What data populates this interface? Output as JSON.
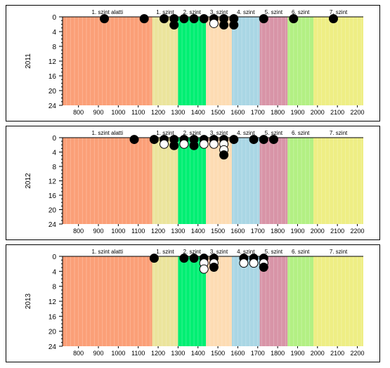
{
  "chart_data": [
    {
      "type": "scatter",
      "ylabel": "2011",
      "xlim": [
        720,
        2230
      ],
      "ylim": [
        24,
        0
      ],
      "x_ticks": [
        "800",
        "900",
        "1000",
        "1100",
        "1200",
        "1300",
        "1400",
        "1500",
        "1600",
        "1700",
        "1800",
        "1900",
        "2000",
        "2100",
        "2200"
      ],
      "y_ticks": [
        "0",
        "4",
        "8",
        "12",
        "16",
        "20",
        "24"
      ],
      "points": [
        {
          "x": 930,
          "y": 0.5,
          "fill": "black"
        },
        {
          "x": 1130,
          "y": 0.5,
          "fill": "black"
        },
        {
          "x": 1230,
          "y": 0.5,
          "fill": "black"
        },
        {
          "x": 1280,
          "y": 0.5,
          "fill": "black"
        },
        {
          "x": 1280,
          "y": 2.2,
          "fill": "black"
        },
        {
          "x": 1330,
          "y": 0.5,
          "fill": "black"
        },
        {
          "x": 1380,
          "y": 0.5,
          "fill": "black"
        },
        {
          "x": 1430,
          "y": 0.5,
          "fill": "black"
        },
        {
          "x": 1480,
          "y": 0.5,
          "fill": "black"
        },
        {
          "x": 1480,
          "y": 1.8,
          "fill": "white"
        },
        {
          "x": 1530,
          "y": 0.5,
          "fill": "black"
        },
        {
          "x": 1530,
          "y": 2.2,
          "fill": "black"
        },
        {
          "x": 1580,
          "y": 0.5,
          "fill": "black"
        },
        {
          "x": 1580,
          "y": 2.2,
          "fill": "black"
        },
        {
          "x": 1730,
          "y": 0.5,
          "fill": "black"
        },
        {
          "x": 1880,
          "y": 0.5,
          "fill": "black"
        },
        {
          "x": 2080,
          "y": 0.5,
          "fill": "black"
        }
      ]
    },
    {
      "type": "scatter",
      "ylabel": "2012",
      "xlim": [
        720,
        2230
      ],
      "ylim": [
        24,
        0
      ],
      "x_ticks": [
        "800",
        "900",
        "1000",
        "1100",
        "1200",
        "1300",
        "1400",
        "1500",
        "1600",
        "1700",
        "1800",
        "1900",
        "2000",
        "2100",
        "2200"
      ],
      "y_ticks": [
        "0",
        "4",
        "8",
        "12",
        "16",
        "20",
        "24"
      ],
      "points": [
        {
          "x": 1080,
          "y": 0.5,
          "fill": "black"
        },
        {
          "x": 1180,
          "y": 0.5,
          "fill": "black"
        },
        {
          "x": 1230,
          "y": 0.5,
          "fill": "black"
        },
        {
          "x": 1230,
          "y": 1.8,
          "fill": "white"
        },
        {
          "x": 1280,
          "y": 0.5,
          "fill": "black"
        },
        {
          "x": 1280,
          "y": 2.2,
          "fill": "black"
        },
        {
          "x": 1330,
          "y": 0.5,
          "fill": "black"
        },
        {
          "x": 1330,
          "y": 1.8,
          "fill": "white"
        },
        {
          "x": 1380,
          "y": 0.5,
          "fill": "black"
        },
        {
          "x": 1380,
          "y": 2.2,
          "fill": "black"
        },
        {
          "x": 1430,
          "y": 0.5,
          "fill": "black"
        },
        {
          "x": 1430,
          "y": 1.8,
          "fill": "white"
        },
        {
          "x": 1480,
          "y": 0.5,
          "fill": "black"
        },
        {
          "x": 1480,
          "y": 1.8,
          "fill": "white"
        },
        {
          "x": 1530,
          "y": 0.5,
          "fill": "black"
        },
        {
          "x": 1530,
          "y": 1.8,
          "fill": "white"
        },
        {
          "x": 1530,
          "y": 3.4,
          "fill": "white"
        },
        {
          "x": 1530,
          "y": 4.8,
          "fill": "black"
        },
        {
          "x": 1580,
          "y": 0.5,
          "fill": "black"
        },
        {
          "x": 1680,
          "y": 0.5,
          "fill": "black"
        },
        {
          "x": 1730,
          "y": 0.5,
          "fill": "black"
        },
        {
          "x": 1780,
          "y": 0.5,
          "fill": "black"
        }
      ]
    },
    {
      "type": "scatter",
      "ylabel": "2013",
      "xlim": [
        720,
        2230
      ],
      "ylim": [
        24,
        0
      ],
      "x_ticks": [
        "800",
        "900",
        "1000",
        "1100",
        "1200",
        "1300",
        "1400",
        "1500",
        "1600",
        "1700",
        "1800",
        "1900",
        "2000",
        "2100",
        "2200"
      ],
      "y_ticks": [
        "0",
        "4",
        "8",
        "12",
        "16",
        "20",
        "24"
      ],
      "points": [
        {
          "x": 1180,
          "y": 0.5,
          "fill": "black"
        },
        {
          "x": 1330,
          "y": 0.5,
          "fill": "black"
        },
        {
          "x": 1380,
          "y": 0.5,
          "fill": "black"
        },
        {
          "x": 1430,
          "y": 0.5,
          "fill": "black"
        },
        {
          "x": 1430,
          "y": 1.8,
          "fill": "white"
        },
        {
          "x": 1430,
          "y": 3.4,
          "fill": "white"
        },
        {
          "x": 1480,
          "y": 0.5,
          "fill": "black"
        },
        {
          "x": 1480,
          "y": 1.8,
          "fill": "white"
        },
        {
          "x": 1480,
          "y": 2.9,
          "fill": "black"
        },
        {
          "x": 1630,
          "y": 0.5,
          "fill": "black"
        },
        {
          "x": 1630,
          "y": 1.8,
          "fill": "white"
        },
        {
          "x": 1680,
          "y": 0.5,
          "fill": "black"
        },
        {
          "x": 1680,
          "y": 1.8,
          "fill": "white"
        },
        {
          "x": 1730,
          "y": 0.5,
          "fill": "black"
        },
        {
          "x": 1730,
          "y": 1.8,
          "fill": "white"
        },
        {
          "x": 1730,
          "y": 2.9,
          "fill": "black"
        }
      ]
    }
  ],
  "levels": [
    {
      "label": "1. szint alatti",
      "from": 720,
      "to": 1170,
      "color": "#fb9f77"
    },
    {
      "label": "1. szint",
      "from": 1170,
      "to": 1300,
      "color": "#ebe49c"
    },
    {
      "label": "2. szint",
      "from": 1300,
      "to": 1440,
      "color": "#00ef73"
    },
    {
      "label": "3. szint",
      "from": 1440,
      "to": 1570,
      "color": "#fddcb3"
    },
    {
      "label": "4. szint",
      "from": 1570,
      "to": 1710,
      "color": "#a9d6e4"
    },
    {
      "label": "5. szint",
      "from": 1710,
      "to": 1850,
      "color": "#d894a7"
    },
    {
      "label": "6. szint",
      "from": 1850,
      "to": 1980,
      "color": "#b3f083"
    },
    {
      "label": "7. szint",
      "from": 1980,
      "to": 2230,
      "color": "#eeee84"
    }
  ]
}
